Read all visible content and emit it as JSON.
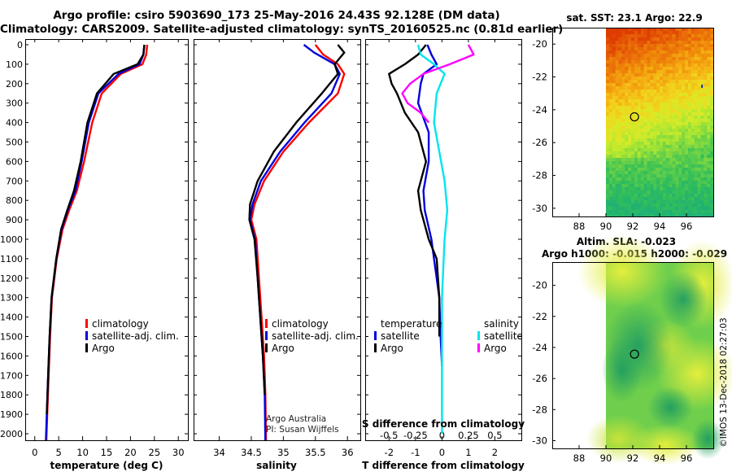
{
  "header": {
    "title_line1": "Argo profile: csiro 5903690_173 25-May-2016 24.43S 92.128E (DM data)",
    "title_line2": "Climatology: CARS2009. Satellite-adjusted climatology: synTS_20160525.nc (0.81d earlier)"
  },
  "colors": {
    "climatology": "#ff0000",
    "satellite": "#0000dd",
    "argo": "#000000",
    "satellite_s": "#00e5ee",
    "argo_s": "#ff00ff"
  },
  "chart_data": [
    {
      "type": "line",
      "id": "temperature",
      "xlabel": "temperature (deg C)",
      "xlim": [
        -2,
        32
      ],
      "xticks": [
        0,
        5,
        10,
        15,
        20,
        25,
        30
      ],
      "xtick_labels": [
        "0",
        "5",
        "10",
        "15",
        "20",
        "25",
        "30"
      ],
      "ylim": [
        2070,
        0
      ],
      "yticks": [
        0,
        100,
        200,
        300,
        400,
        500,
        600,
        700,
        800,
        900,
        1000,
        1100,
        1200,
        1300,
        1400,
        1500,
        1600,
        1700,
        1800,
        1900,
        2000
      ],
      "ytick_labels": [
        "0",
        "100",
        "200",
        "300",
        "400",
        "500",
        "600",
        "700",
        "800",
        "900",
        "1000",
        "1100",
        "1200",
        "1300",
        "1400",
        "1500",
        "1600",
        "1700",
        "1800",
        "1900",
        "2000"
      ],
      "legend": [
        "climatology",
        "satellite-adj. clim.",
        "Argo"
      ],
      "series": [
        {
          "name": "climatology",
          "color": "#ff0000",
          "x": [
            23.5,
            23.3,
            22.5,
            18,
            14,
            12,
            10.3,
            8.8,
            7.2,
            5.8,
            4.6,
            3.6,
            3.2,
            2.9,
            2.6,
            2.4
          ],
          "y": [
            0,
            50,
            100,
            150,
            250,
            400,
            600,
            750,
            850,
            950,
            1100,
            1300,
            1500,
            1700,
            1900,
            2050
          ]
        },
        {
          "name": "satellite-adj. clim.",
          "color": "#0000dd",
          "x": [
            22.9,
            22.7,
            21.9,
            17.5,
            13.3,
            11.3,
            9.8,
            8.5,
            6.9,
            5.6,
            4.5,
            3.5,
            3.1,
            2.8,
            2.5,
            2.3
          ],
          "y": [
            0,
            50,
            100,
            150,
            250,
            400,
            600,
            750,
            850,
            950,
            1100,
            1300,
            1500,
            1700,
            1900,
            2050
          ]
        },
        {
          "name": "Argo",
          "color": "#000000",
          "x": [
            22.9,
            22.7,
            21.5,
            16.5,
            13,
            11,
            9.6,
            8.2,
            6.8,
            5.5,
            4.5,
            3.5,
            3.1,
            2.8,
            2.5
          ],
          "y": [
            0,
            50,
            100,
            150,
            250,
            400,
            600,
            750,
            850,
            950,
            1100,
            1300,
            1500,
            1700,
            1900
          ]
        }
      ]
    },
    {
      "type": "line",
      "id": "salinity",
      "xlabel": "salinity",
      "xlim": [
        33.6,
        36.2
      ],
      "xticks": [
        34,
        34.5,
        35,
        35.5,
        36
      ],
      "xtick_labels": [
        "34",
        "34.5",
        "35",
        "35.5",
        "36"
      ],
      "ylim": [
        2070,
        0
      ],
      "legend": [
        "climatology",
        "satellite-adj. clim.",
        "Argo"
      ],
      "annotation": [
        "Argo Australia",
        "PI: Susan Wijffels"
      ],
      "series": [
        {
          "name": "climatology",
          "color": "#ff0000",
          "x": [
            35.5,
            35.62,
            35.85,
            35.95,
            35.85,
            35.4,
            35,
            34.7,
            34.55,
            34.5,
            34.58,
            34.62,
            34.66,
            34.7,
            34.72,
            34.73
          ],
          "y": [
            0,
            50,
            100,
            150,
            250,
            400,
            550,
            700,
            820,
            900,
            1000,
            1200,
            1400,
            1600,
            1800,
            2050
          ]
        },
        {
          "name": "satellite-adj. clim.",
          "color": "#0000dd",
          "x": [
            35.32,
            35.48,
            35.8,
            35.88,
            35.75,
            35.33,
            34.95,
            34.65,
            34.52,
            34.48,
            34.56,
            34.6,
            34.64,
            34.68,
            34.71,
            34.72
          ],
          "y": [
            0,
            40,
            100,
            150,
            250,
            400,
            550,
            700,
            820,
            900,
            1000,
            1200,
            1400,
            1600,
            1800,
            2050
          ]
        },
        {
          "name": "Argo",
          "color": "#000000",
          "x": [
            35.85,
            35.95,
            35.8,
            35.85,
            35.6,
            35.2,
            34.85,
            34.6,
            34.48,
            34.47,
            34.55,
            34.6,
            34.64,
            34.68,
            34.71
          ],
          "y": [
            0,
            40,
            100,
            150,
            250,
            400,
            550,
            700,
            820,
            900,
            1000,
            1200,
            1400,
            1600,
            1800
          ]
        }
      ]
    },
    {
      "type": "line",
      "id": "difference",
      "xlabel": "T difference from climatology",
      "top_label": "S difference from climatology",
      "xlim": [
        -2.9,
        3.0
      ],
      "xticks": [
        -2,
        -1,
        0,
        1,
        2
      ],
      "xtick_labels": [
        "-2",
        "-1",
        "0",
        "1",
        "2"
      ],
      "top_ticks": [
        -0.5,
        -0.25,
        0,
        0.25,
        0.5
      ],
      "top_tick_labels": [
        "-0.5",
        "-0.25",
        "0",
        "0.25",
        "0.5"
      ],
      "ylim": [
        2070,
        0
      ],
      "legend_left_title": "temperature",
      "legend_right_title": "salinity",
      "legend_left": [
        "satellite",
        "Argo"
      ],
      "legend_right": [
        "satellite",
        "Argo"
      ],
      "series": [
        {
          "name": "T satellite",
          "color": "#0000dd",
          "x": [
            -0.55,
            -0.4,
            -0.2,
            -0.7,
            -0.8,
            -0.9,
            -0.5,
            -0.5,
            -0.7,
            -0.65,
            -0.4,
            -0.3,
            -0.2,
            -0.1,
            -0.05,
            0
          ],
          "y": [
            0,
            50,
            100,
            150,
            200,
            300,
            450,
            600,
            750,
            850,
            1000,
            1100,
            1200,
            1300,
            1500,
            1650
          ]
        },
        {
          "name": "T Argo",
          "color": "#000000",
          "x": [
            -0.6,
            -0.9,
            -1.4,
            -2,
            -1.9,
            -1.7,
            -1.4,
            -0.9,
            -0.6,
            -0.9,
            -0.8,
            -0.5,
            -0.2,
            -0.1,
            -0.1
          ],
          "y": [
            0,
            50,
            100,
            150,
            200,
            250,
            350,
            450,
            600,
            750,
            850,
            1000,
            1100,
            1300,
            1500
          ]
        },
        {
          "name": "S satellite",
          "color": "#00e5ee",
          "x": [
            -0.9,
            -0.8,
            -0.3,
            0.1,
            -0.2,
            -0.3,
            -0.1,
            0.1,
            0.2,
            0.1,
            0,
            0,
            0
          ],
          "y": [
            0,
            50,
            100,
            150,
            250,
            400,
            550,
            700,
            850,
            1000,
            1300,
            1600,
            2000
          ]
        },
        {
          "name": "S Argo",
          "color": "#ff00ff",
          "x": [
            1,
            1.2,
            0.3,
            -0.7,
            -1.2,
            -1.5,
            -1.3,
            -0.8,
            -0.5
          ],
          "y": [
            0,
            50,
            100,
            150,
            200,
            250,
            300,
            350,
            400
          ]
        }
      ]
    },
    {
      "type": "heatmap",
      "id": "sst-map",
      "title": "sat. SST: 23.1 Argo: 22.9",
      "xlim": [
        86,
        98
      ],
      "ylim": [
        -30.5,
        -19
      ],
      "xticks": [
        88,
        90,
        92,
        94,
        96
      ],
      "xtick_labels": [
        "88",
        "90",
        "92",
        "94",
        "96"
      ],
      "yticks": [
        -20,
        -22,
        -24,
        -26,
        -28,
        -30
      ],
      "ytick_labels": [
        "-20",
        "-22",
        "-24",
        "-26",
        "-28",
        "-30"
      ],
      "float_position": [
        92.128,
        -24.43
      ]
    },
    {
      "type": "heatmap",
      "id": "sla-map",
      "title_line1": "Altim. SLA: -0.023",
      "title_line2": "Argo h1000: -0.015 h2000: -0.029",
      "xlim": [
        86,
        98
      ],
      "ylim": [
        -30.5,
        -18.5
      ],
      "xticks": [
        88,
        90,
        92,
        94,
        96
      ],
      "xtick_labels": [
        "88",
        "90",
        "92",
        "94",
        "96"
      ],
      "yticks": [
        -20,
        -22,
        -24,
        -26,
        -28,
        -30
      ],
      "ytick_labels": [
        "-20",
        "-22",
        "-24",
        "-26",
        "-28",
        "-30"
      ],
      "float_position": [
        92.128,
        -24.43
      ]
    }
  ],
  "footer": {
    "copyright": "©IMOS 13-Dec-2018 02:27:03"
  }
}
